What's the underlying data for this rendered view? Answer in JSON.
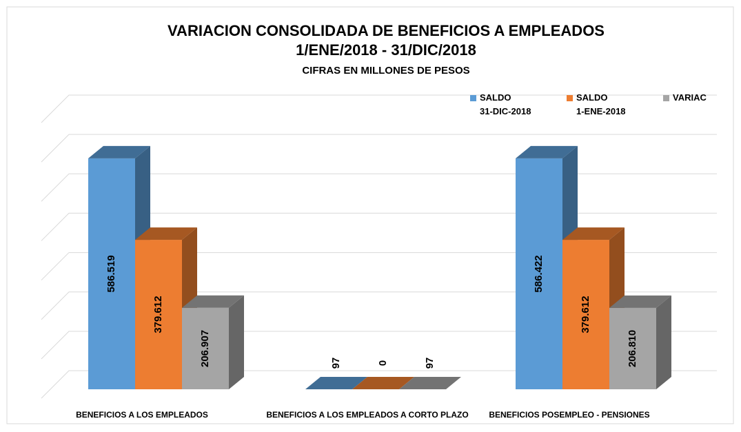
{
  "chart_data": {
    "type": "bar3d",
    "title": "VARIACION CONSOLIDADA DE BENEFICIOS A EMPLEADOS",
    "subtitle": "1/ENE/2018 - 31/DIC/2018",
    "note": "CIFRAS EN MILLONES DE PESOS",
    "categories": [
      "BENEFICIOS A LOS EMPLEADOS",
      "BENEFICIOS A LOS EMPLEADOS A CORTO PLAZO",
      "BENEFICIOS POSEMPLEO - PENSIONES"
    ],
    "series": [
      {
        "name": "SALDO\n31-DIC-2018",
        "color": "#5b9bd5",
        "values": [
          586519,
          97,
          586422
        ],
        "value_labels": [
          "586.519",
          "97",
          "586.422"
        ]
      },
      {
        "name": "SALDO\n1-ENE-2018",
        "color": "#ed7d31",
        "values": [
          379612,
          0,
          379612
        ],
        "value_labels": [
          "379.612",
          "0",
          "379.612"
        ]
      },
      {
        "name": "VARIAC",
        "color": "#a5a5a5",
        "values": [
          206907,
          97,
          206810
        ],
        "value_labels": [
          "206.907",
          "97",
          "206.810"
        ]
      }
    ],
    "ylim": [
      0,
      700000
    ],
    "yticks": [
      0,
      100000,
      200000,
      300000,
      400000,
      500000,
      600000,
      700000
    ],
    "grid": true
  }
}
